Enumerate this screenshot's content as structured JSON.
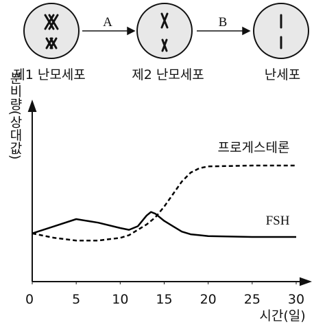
{
  "diagram": {
    "cells": [
      "제1 난모세포",
      "제2 난모세포",
      "난세포"
    ],
    "arrows": [
      "A",
      "B"
    ]
  },
  "chart_data": {
    "type": "line",
    "y_label": "분비량(상대값)",
    "x_label": "시간(일)",
    "x": [
      0,
      2.5,
      5,
      7.5,
      10,
      11,
      12,
      13,
      13.5,
      14,
      15,
      16,
      17,
      18,
      19,
      20,
      25,
      30
    ],
    "series": [
      {
        "name": "FSH",
        "color": "#000000",
        "dash": false,
        "values": [
          27,
          31,
          35,
          33,
          30,
          29,
          31,
          37,
          39,
          38,
          34,
          31,
          28,
          26.5,
          26,
          25.5,
          25,
          25
        ]
      },
      {
        "name": "프로게스테론",
        "color": "#000000",
        "dash": true,
        "values": [
          27,
          24.5,
          23,
          23,
          24.5,
          26,
          29,
          32,
          34,
          36,
          42,
          49,
          56,
          61,
          63.5,
          64.5,
          65,
          65
        ]
      }
    ],
    "xlim": [
      0,
      30
    ],
    "xticks": [
      0,
      5,
      10,
      15,
      20,
      25,
      30
    ],
    "ylim": [
      0,
      100
    ]
  }
}
